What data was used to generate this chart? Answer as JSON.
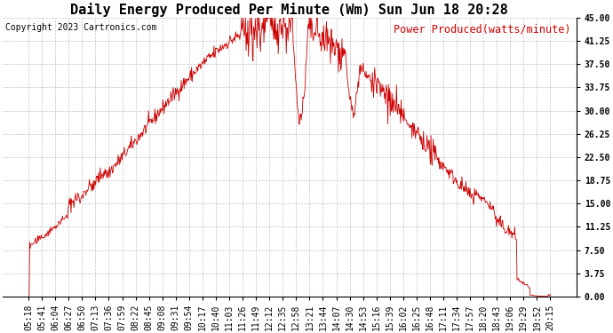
{
  "title": "Daily Energy Produced Per Minute (Wm) Sun Jun 18 20:28",
  "legend_label": "Power Produced(watts/minute)",
  "copyright": "Copyright 2023 Cartronics.com",
  "line_color": "#cc0000",
  "bg_color": "#ffffff",
  "grid_color": "#bbbbbb",
  "ylim": [
    0,
    45.0
  ],
  "yticks": [
    0.0,
    3.75,
    7.5,
    11.25,
    15.0,
    18.75,
    22.5,
    26.25,
    30.0,
    33.75,
    37.5,
    41.25,
    45.0
  ],
  "xtick_labels": [
    "05:18",
    "05:41",
    "06:04",
    "06:27",
    "06:50",
    "07:13",
    "07:36",
    "07:59",
    "08:22",
    "08:45",
    "09:08",
    "09:31",
    "09:54",
    "10:17",
    "10:40",
    "11:03",
    "11:26",
    "11:49",
    "12:12",
    "12:35",
    "12:58",
    "13:21",
    "13:44",
    "14:07",
    "14:30",
    "14:53",
    "15:16",
    "15:39",
    "16:02",
    "16:25",
    "16:48",
    "17:11",
    "17:34",
    "17:57",
    "18:20",
    "18:43",
    "19:06",
    "19:29",
    "19:52",
    "20:15"
  ],
  "title_fontsize": 11,
  "copyright_fontsize": 7,
  "legend_fontsize": 8.5,
  "tick_fontsize": 7
}
